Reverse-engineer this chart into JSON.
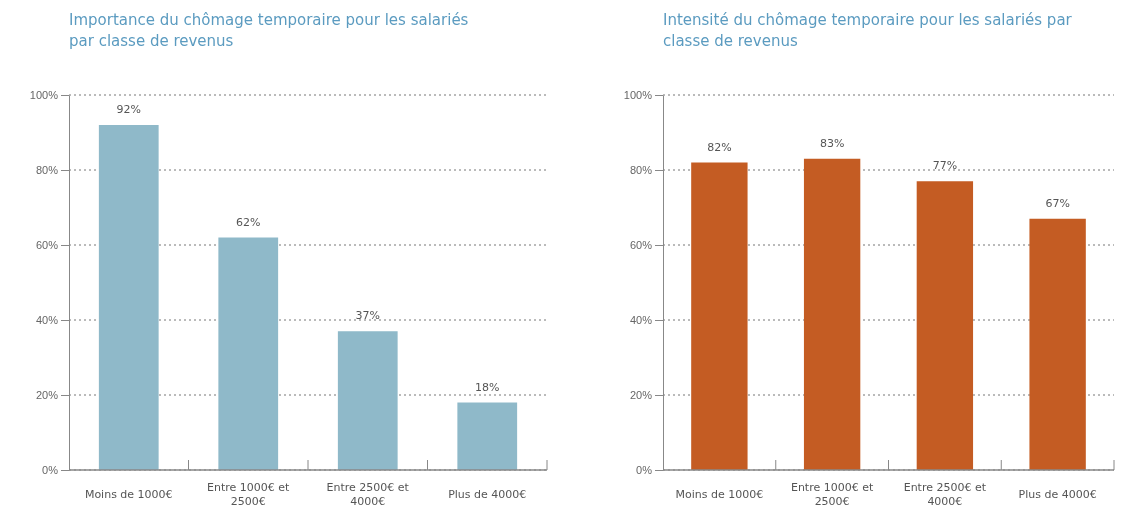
{
  "chart_data": [
    {
      "type": "bar",
      "title": "Importance du chômage temporaire pour les salariés par classe de revenus",
      "categories": [
        "Moins de 1000€",
        "Entre 1000€ et 2500€",
        "Entre 2500€ et 4000€",
        "Plus de 4000€"
      ],
      "values": [
        92,
        62,
        37,
        18
      ],
      "value_labels": [
        "92%",
        "62%",
        "37%",
        "18%"
      ],
      "color": "#8fb9c9",
      "ylim": [
        0,
        100
      ],
      "yticks": [
        {
          "value": 0,
          "label": "0%"
        },
        {
          "value": 20,
          "label": "20%"
        },
        {
          "value": 40,
          "label": "40%"
        },
        {
          "value": 60,
          "label": "60%"
        },
        {
          "value": 80,
          "label": "80%"
        },
        {
          "value": 100,
          "label": "100%"
        }
      ],
      "grid": "y"
    },
    {
      "type": "bar",
      "title": "Intensité du chômage temporaire pour les salariés par classe de revenus",
      "categories": [
        "Moins de 1000€",
        "Entre 1000€ et 2500€",
        "Entre 2500€ et 4000€",
        "Plus de 4000€"
      ],
      "values": [
        82,
        83,
        77,
        67
      ],
      "value_labels": [
        "82%",
        "83%",
        "77%",
        "67%"
      ],
      "color": "#c45c23",
      "ylim": [
        0,
        100
      ],
      "yticks": [
        {
          "value": 0,
          "label": "0%"
        },
        {
          "value": 20,
          "label": "20%"
        },
        {
          "value": 40,
          "label": "40%"
        },
        {
          "value": 60,
          "label": "60%"
        },
        {
          "value": 80,
          "label": "80%"
        },
        {
          "value": 100,
          "label": "100%"
        }
      ],
      "grid": "y"
    }
  ]
}
